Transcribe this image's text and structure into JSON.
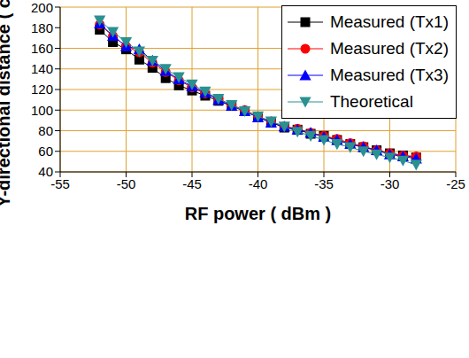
{
  "chart_data": {
    "type": "scatter",
    "x_label": "RF power ( dBm )",
    "y_label": "Y-directional distance ( cm )",
    "x": [
      -52,
      -51,
      -50,
      -49,
      -48,
      -47,
      -46,
      -45,
      -44,
      -43,
      -42,
      -41,
      -40,
      -39,
      -38,
      -37,
      -36,
      -35,
      -34,
      -33,
      -32,
      -31,
      -30,
      -29,
      -28
    ],
    "series": [
      {
        "name": "Measured (Tx1)",
        "color": "#000000",
        "marker": "square",
        "values": [
          178,
          166,
          159,
          149,
          141,
          131,
          124,
          119,
          114,
          109,
          104,
          99,
          93,
          88,
          83,
          81,
          77,
          75,
          71,
          67,
          64,
          61,
          58,
          56,
          54
        ]
      },
      {
        "name": "Measured (Tx2)",
        "color": "#ff0000",
        "marker": "circle",
        "values": [
          183,
          172,
          162,
          156,
          146,
          137,
          129,
          122,
          116,
          111,
          105,
          100,
          94,
          89,
          84,
          82,
          78,
          75,
          72,
          68,
          65,
          61,
          58,
          56,
          55
        ]
      },
      {
        "name": "Measured (Tx3)",
        "color": "#0000ff",
        "marker": "triangle",
        "values": [
          184,
          172,
          162,
          159,
          148,
          138,
          130,
          123,
          117,
          110,
          104,
          99,
          93,
          88,
          84,
          81,
          78,
          74,
          71,
          67,
          64,
          61,
          57,
          55,
          53
        ]
      },
      {
        "name": "Theoretical",
        "color": "#2a9090",
        "marker": "triangle-down",
        "values": [
          187,
          176,
          166,
          157,
          148,
          140,
          132,
          125,
          118,
          111,
          105,
          99,
          94,
          89,
          84,
          79,
          75,
          71,
          67,
          64,
          60,
          57,
          54,
          51,
          47
        ]
      }
    ],
    "xlim": [
      -55,
      -25
    ],
    "xticks": [
      -55,
      -50,
      -45,
      -40,
      -35,
      -30,
      -25
    ],
    "ylim": [
      40,
      200
    ],
    "yticks": [
      40,
      60,
      80,
      100,
      120,
      140,
      160,
      180,
      200
    ],
    "grid": true,
    "legend": "upper right"
  }
}
